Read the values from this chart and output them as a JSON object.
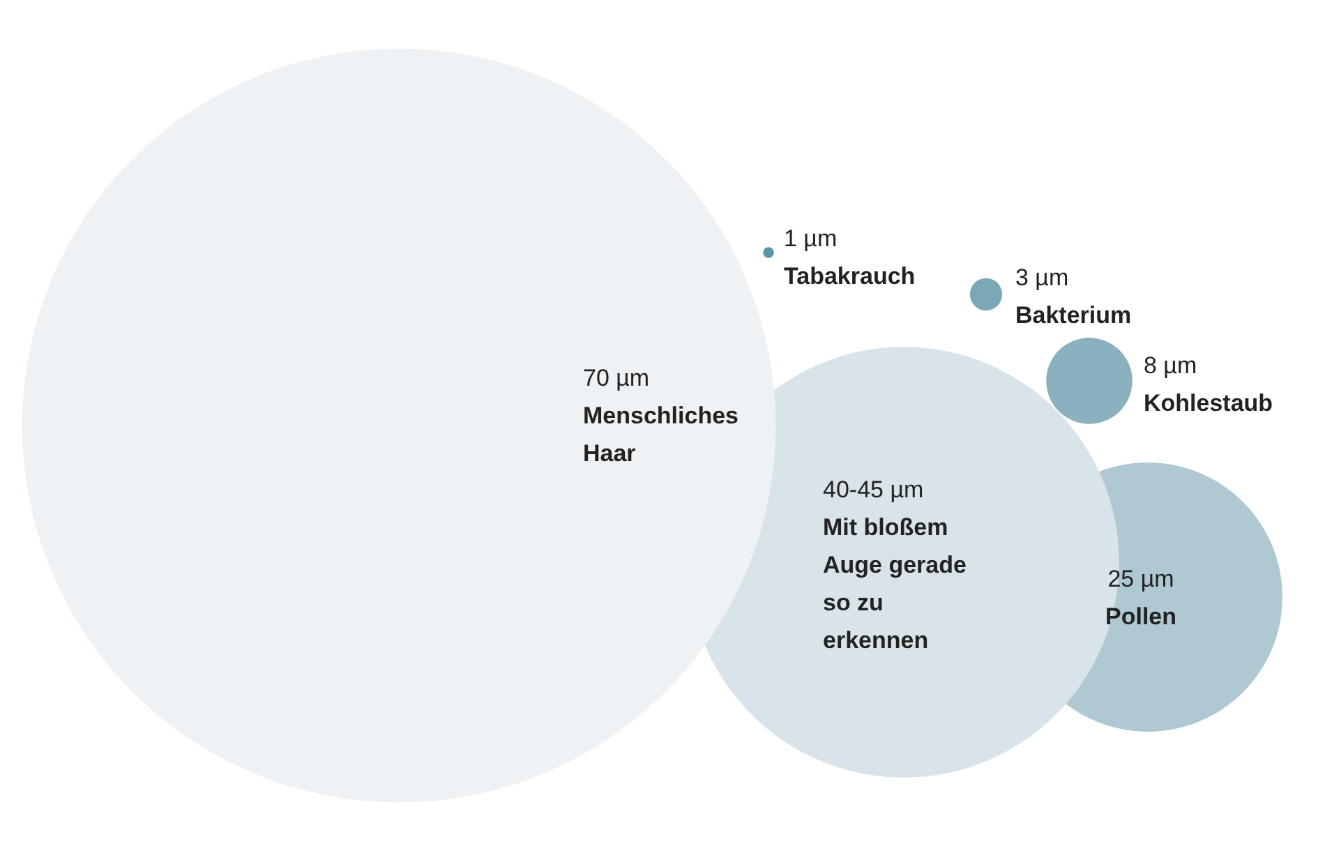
{
  "chart_data": {
    "type": "other",
    "categories": [
      "Menschliches Haar",
      "Mit bloßem Auge gerade so zu erkennen",
      "Pollen",
      "Kohlestaub",
      "Bakterium",
      "Tabakrauch"
    ],
    "values": [
      70,
      40,
      25,
      8,
      3,
      1
    ],
    "value_labels": [
      "70 µm",
      "40-45 µm",
      "25 µm",
      "8 µm",
      "3 µm",
      "1 µm"
    ],
    "colors": [
      "#eef2f5",
      "#d9e4ea",
      "#aec9d2",
      "#8bb0be",
      "#7ba7b6",
      "#5b95a9"
    ]
  }
}
